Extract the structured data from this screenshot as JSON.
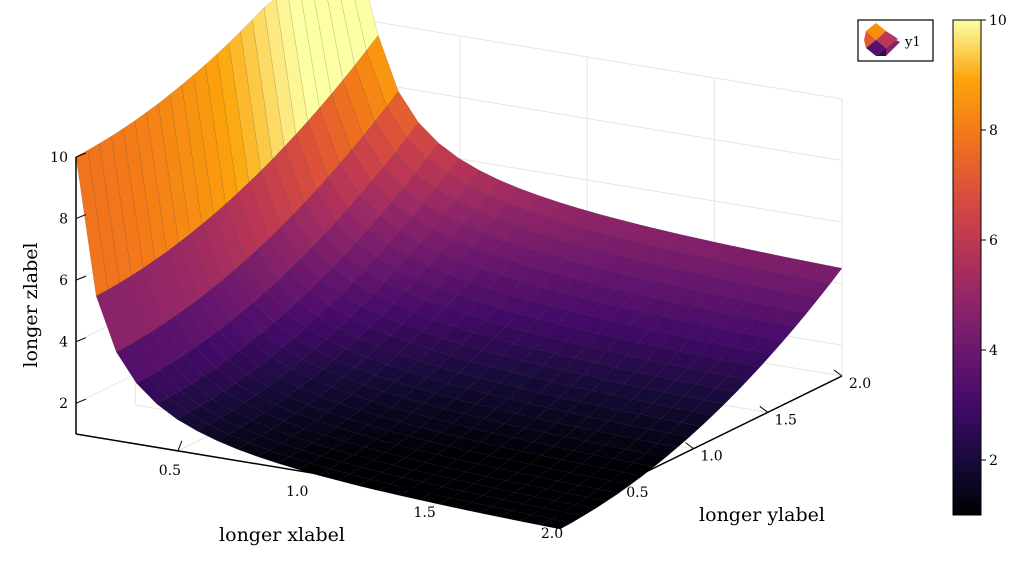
{
  "chart_data": {
    "type": "surface",
    "title": "",
    "xlabel": "longer xlabel",
    "ylabel": "longer ylabel",
    "zlabel": "longer zlabel",
    "function": "z = 1/x + y^2 sampled on a grid",
    "x_range": [
      0.1,
      2.0
    ],
    "y_range": [
      0.1,
      2.0
    ],
    "z_range": [
      1.0,
      10.0
    ],
    "xticks": [
      "0.5",
      "1.0",
      "1.5",
      "2.0"
    ],
    "yticks": [
      "0.5",
      "1.0",
      "1.5",
      "2.0"
    ],
    "zticks": [
      "2",
      "4",
      "6",
      "8",
      "10"
    ],
    "colorbar": {
      "colormap": "inferno",
      "range": [
        1.0,
        10.0
      ],
      "ticks": [
        "2",
        "4",
        "6",
        "8",
        "10"
      ]
    },
    "legend": {
      "entries": [
        "y1"
      ],
      "position": "top-right"
    },
    "grid": true
  }
}
